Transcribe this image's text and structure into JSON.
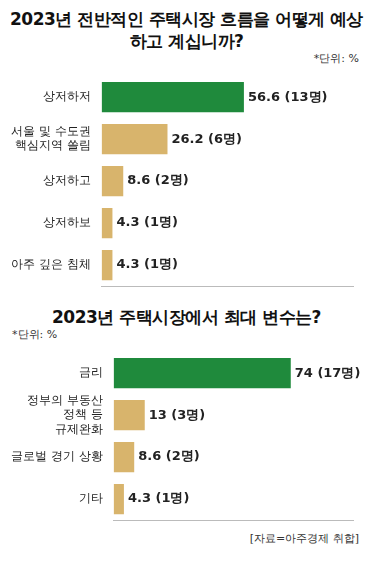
{
  "chart_data": [
    {
      "type": "bar",
      "orientation": "horizontal",
      "title": "2023년 전반적인 주택시장 흐름을 어떻게 예상하고 계십니까?",
      "subtitle": "*단위: %",
      "categories": [
        "상저하저",
        "서울 및 수도권\n핵심지역 쏠림",
        "상저하고",
        "상저하보",
        "아주 깊은 침체"
      ],
      "values": [
        56.6,
        26.2,
        8.6,
        4.3,
        4.3
      ],
      "value_labels": [
        "56.6 (13명)",
        "26.2 (6명)",
        "8.6 (2명)",
        "4.3 (1명)",
        "4.3 (1명)"
      ],
      "colors": [
        "#1f8a3c",
        "#d8b46c",
        "#d8b46c",
        "#d8b46c",
        "#d8b46c"
      ],
      "xlim": [
        0,
        100
      ],
      "grid": false,
      "data_labels": true,
      "tick_labels": "y"
    },
    {
      "type": "bar",
      "orientation": "horizontal",
      "title": "2023년 주택시장에서 최대 변수는?",
      "subtitle": "*단위: %",
      "categories": [
        "금리",
        "정부의 부동산\n정책 등\n규제완화",
        "글로벌 경기 상황",
        "기타"
      ],
      "values": [
        74,
        13,
        8.6,
        4.3
      ],
      "value_labels": [
        "74 (17명)",
        "13 (3명)",
        "8.6 (2명)",
        "4.3 (1명)"
      ],
      "colors": [
        "#1f8a3c",
        "#d8b46c",
        "#d8b46c",
        "#d8b46c"
      ],
      "xlim": [
        0,
        100
      ],
      "grid": false,
      "data_labels": true,
      "tick_labels": "y",
      "annotations": [
        "[자료=아주경제 취합]"
      ]
    }
  ]
}
